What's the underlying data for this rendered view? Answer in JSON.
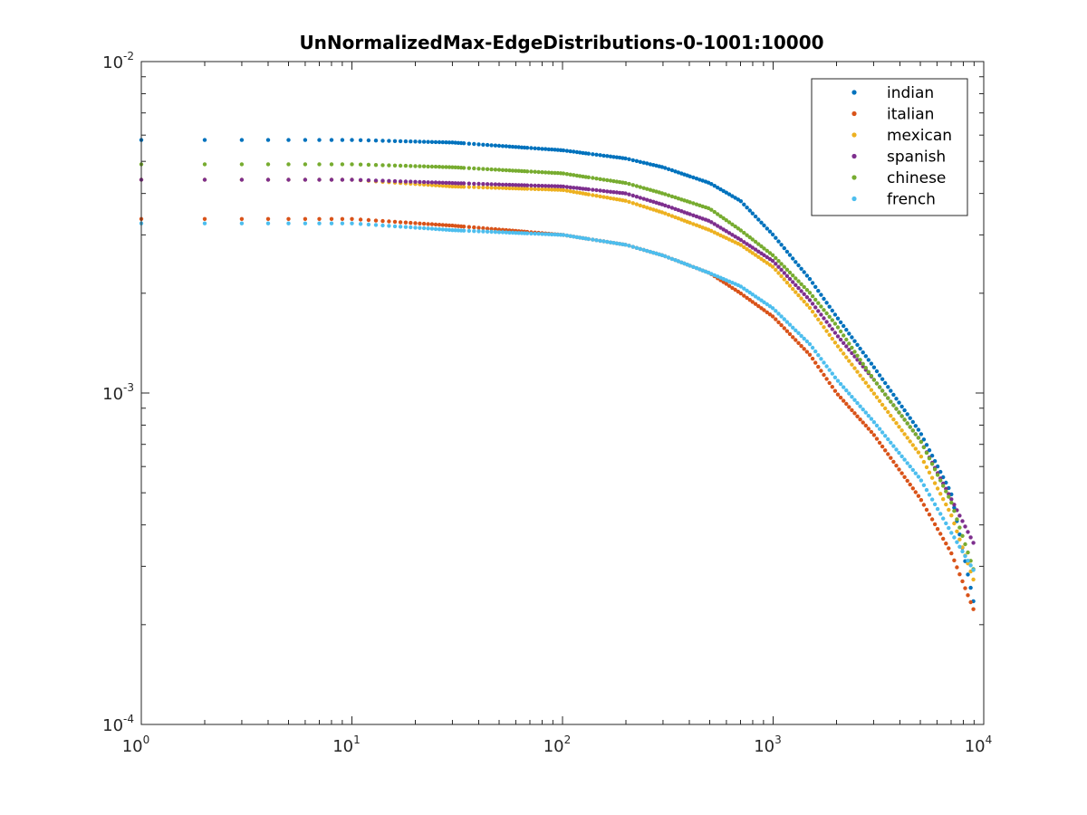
{
  "chart_data": {
    "type": "scatter",
    "title": "UnNormalizedMax-EdgeDistributions-0-1001:10000",
    "xlabel": "",
    "ylabel": "",
    "xscale": "log",
    "yscale": "log",
    "xlim": [
      1,
      10000
    ],
    "ylim": [
      0.0001,
      0.01
    ],
    "x_ticks": [
      {
        "base": "10",
        "exp": "0"
      },
      {
        "base": "10",
        "exp": "1"
      },
      {
        "base": "10",
        "exp": "2"
      },
      {
        "base": "10",
        "exp": "3"
      },
      {
        "base": "10",
        "exp": "4"
      }
    ],
    "y_ticks": [
      {
        "base": "10",
        "exp": "-4"
      },
      {
        "base": "10",
        "exp": "-3"
      },
      {
        "base": "10",
        "exp": "-2"
      }
    ],
    "grid": false,
    "legend_position": "top-right",
    "series": [
      {
        "name": "indian",
        "color": "#0072BD",
        "points": [
          [
            1,
            0.0058
          ],
          [
            10,
            0.0058
          ],
          [
            30,
            0.0057
          ],
          [
            100,
            0.0054
          ],
          [
            200,
            0.0051
          ],
          [
            300,
            0.0048
          ],
          [
            500,
            0.0043
          ],
          [
            700,
            0.0038
          ],
          [
            1000,
            0.003
          ],
          [
            1500,
            0.0022
          ],
          [
            2000,
            0.0017
          ],
          [
            3000,
            0.0012
          ],
          [
            5000,
            0.00076
          ],
          [
            7000,
            0.0005
          ],
          [
            9000,
            0.00023
          ]
        ]
      },
      {
        "name": "italian",
        "color": "#D95319",
        "points": [
          [
            1,
            0.00335
          ],
          [
            10,
            0.00335
          ],
          [
            30,
            0.0032
          ],
          [
            100,
            0.003
          ],
          [
            200,
            0.0028
          ],
          [
            300,
            0.0026
          ],
          [
            500,
            0.0023
          ],
          [
            700,
            0.002
          ],
          [
            1000,
            0.0017
          ],
          [
            1500,
            0.0013
          ],
          [
            2000,
            0.001
          ],
          [
            3000,
            0.00075
          ],
          [
            5000,
            0.00048
          ],
          [
            7000,
            0.00033
          ],
          [
            9000,
            0.00022
          ]
        ]
      },
      {
        "name": "mexican",
        "color": "#EDB120",
        "points": [
          [
            1,
            0.0044
          ],
          [
            10,
            0.0044
          ],
          [
            30,
            0.0042
          ],
          [
            100,
            0.0041
          ],
          [
            200,
            0.0038
          ],
          [
            300,
            0.0035
          ],
          [
            500,
            0.0031
          ],
          [
            700,
            0.0028
          ],
          [
            1000,
            0.0024
          ],
          [
            1500,
            0.0018
          ],
          [
            2000,
            0.0014
          ],
          [
            3000,
            0.001
          ],
          [
            5000,
            0.00065
          ],
          [
            7000,
            0.00043
          ],
          [
            9000,
            0.00027
          ]
        ]
      },
      {
        "name": "spanish",
        "color": "#7E2F8E",
        "points": [
          [
            1,
            0.0044
          ],
          [
            10,
            0.0044
          ],
          [
            30,
            0.0043
          ],
          [
            100,
            0.0042
          ],
          [
            200,
            0.004
          ],
          [
            300,
            0.0037
          ],
          [
            500,
            0.0033
          ],
          [
            700,
            0.0029
          ],
          [
            1000,
            0.0025
          ],
          [
            1500,
            0.0019
          ],
          [
            2000,
            0.0015
          ],
          [
            3000,
            0.0011
          ],
          [
            5000,
            0.00072
          ],
          [
            7000,
            0.00048
          ],
          [
            9000,
            0.00035
          ]
        ]
      },
      {
        "name": "chinese",
        "color": "#77AC30",
        "points": [
          [
            1,
            0.0049
          ],
          [
            10,
            0.0049
          ],
          [
            30,
            0.0048
          ],
          [
            100,
            0.0046
          ],
          [
            200,
            0.0043
          ],
          [
            300,
            0.004
          ],
          [
            500,
            0.0036
          ],
          [
            700,
            0.0031
          ],
          [
            1000,
            0.0026
          ],
          [
            1500,
            0.002
          ],
          [
            2000,
            0.0016
          ],
          [
            3000,
            0.0011
          ],
          [
            5000,
            0.00072
          ],
          [
            7000,
            0.00047
          ],
          [
            9000,
            0.00029
          ]
        ]
      },
      {
        "name": "french",
        "color": "#4DBEEE",
        "points": [
          [
            1,
            0.00325
          ],
          [
            10,
            0.00325
          ],
          [
            30,
            0.0031
          ],
          [
            100,
            0.003
          ],
          [
            200,
            0.0028
          ],
          [
            300,
            0.0026
          ],
          [
            500,
            0.0023
          ],
          [
            700,
            0.0021
          ],
          [
            1000,
            0.0018
          ],
          [
            1500,
            0.0014
          ],
          [
            2000,
            0.0011
          ],
          [
            3000,
            0.00082
          ],
          [
            5000,
            0.00055
          ],
          [
            7000,
            0.00038
          ],
          [
            9000,
            0.00029
          ]
        ]
      }
    ]
  }
}
